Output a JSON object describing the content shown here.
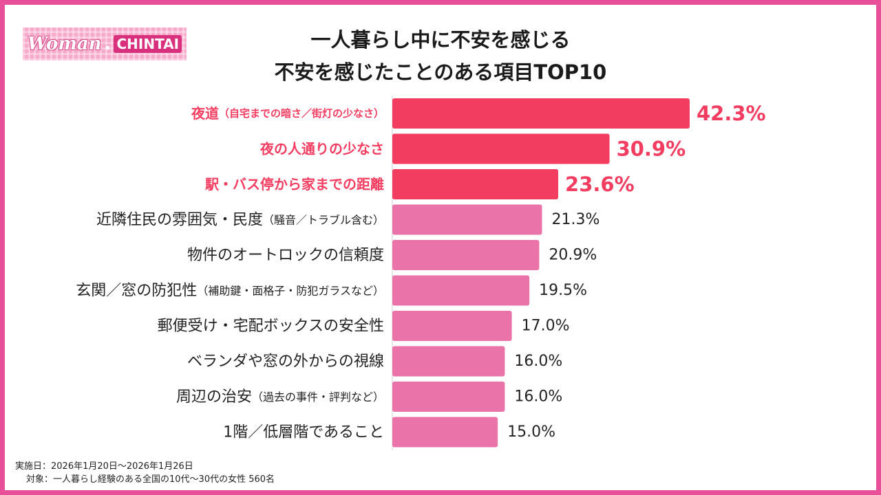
{
  "logo": {
    "script": "Woman",
    "dot": ".",
    "block": "CHINTAI"
  },
  "title": {
    "line1": "一人暮らし中に不安を感じる",
    "line2": "不安を感じたことのある項目TOP10"
  },
  "chart_data": {
    "type": "bar",
    "orientation": "horizontal",
    "categories": [
      {
        "main": "夜道",
        "sub": "（自宅までの暗さ／街灯の少なさ）"
      },
      {
        "main": "夜の人通りの少なさ",
        "sub": ""
      },
      {
        "main": "駅・バス停から家までの距離",
        "sub": ""
      },
      {
        "main": "近隣住民の雰囲気・民度",
        "sub": "（騒音／トラブル含む）"
      },
      {
        "main": "物件のオートロックの信頼度",
        "sub": ""
      },
      {
        "main": "玄関／窓の防犯性",
        "sub": "（補助鍵・面格子・防犯ガラスなど）"
      },
      {
        "main": "郵便受け・宅配ボックスの安全性",
        "sub": ""
      },
      {
        "main": "ベランダや窓の外からの視線",
        "sub": ""
      },
      {
        "main": "周辺の治安",
        "sub": "（過去の事件・評判など）"
      },
      {
        "main": "1階／低層階であること",
        "sub": ""
      }
    ],
    "values": [
      42.3,
      30.9,
      23.6,
      21.3,
      20.9,
      19.5,
      17.0,
      16.0,
      16.0,
      15.0
    ],
    "value_labels": [
      "42.3%",
      "30.9%",
      "23.6%",
      "21.3%",
      "20.9%",
      "19.5%",
      "17.0%",
      "16.0%",
      "16.0%",
      "15.0%"
    ],
    "highlight_top": 3,
    "colors": {
      "highlight": "#f23d61",
      "normal": "#ea73aa",
      "label_dark": "#222222"
    },
    "xlim": [
      0,
      45
    ]
  },
  "notes": {
    "date": "実施日：2026年1月20日〜2026年1月26日",
    "target": "対象：一人暮らし経験のある全国の10代〜30代の女性 560名"
  }
}
